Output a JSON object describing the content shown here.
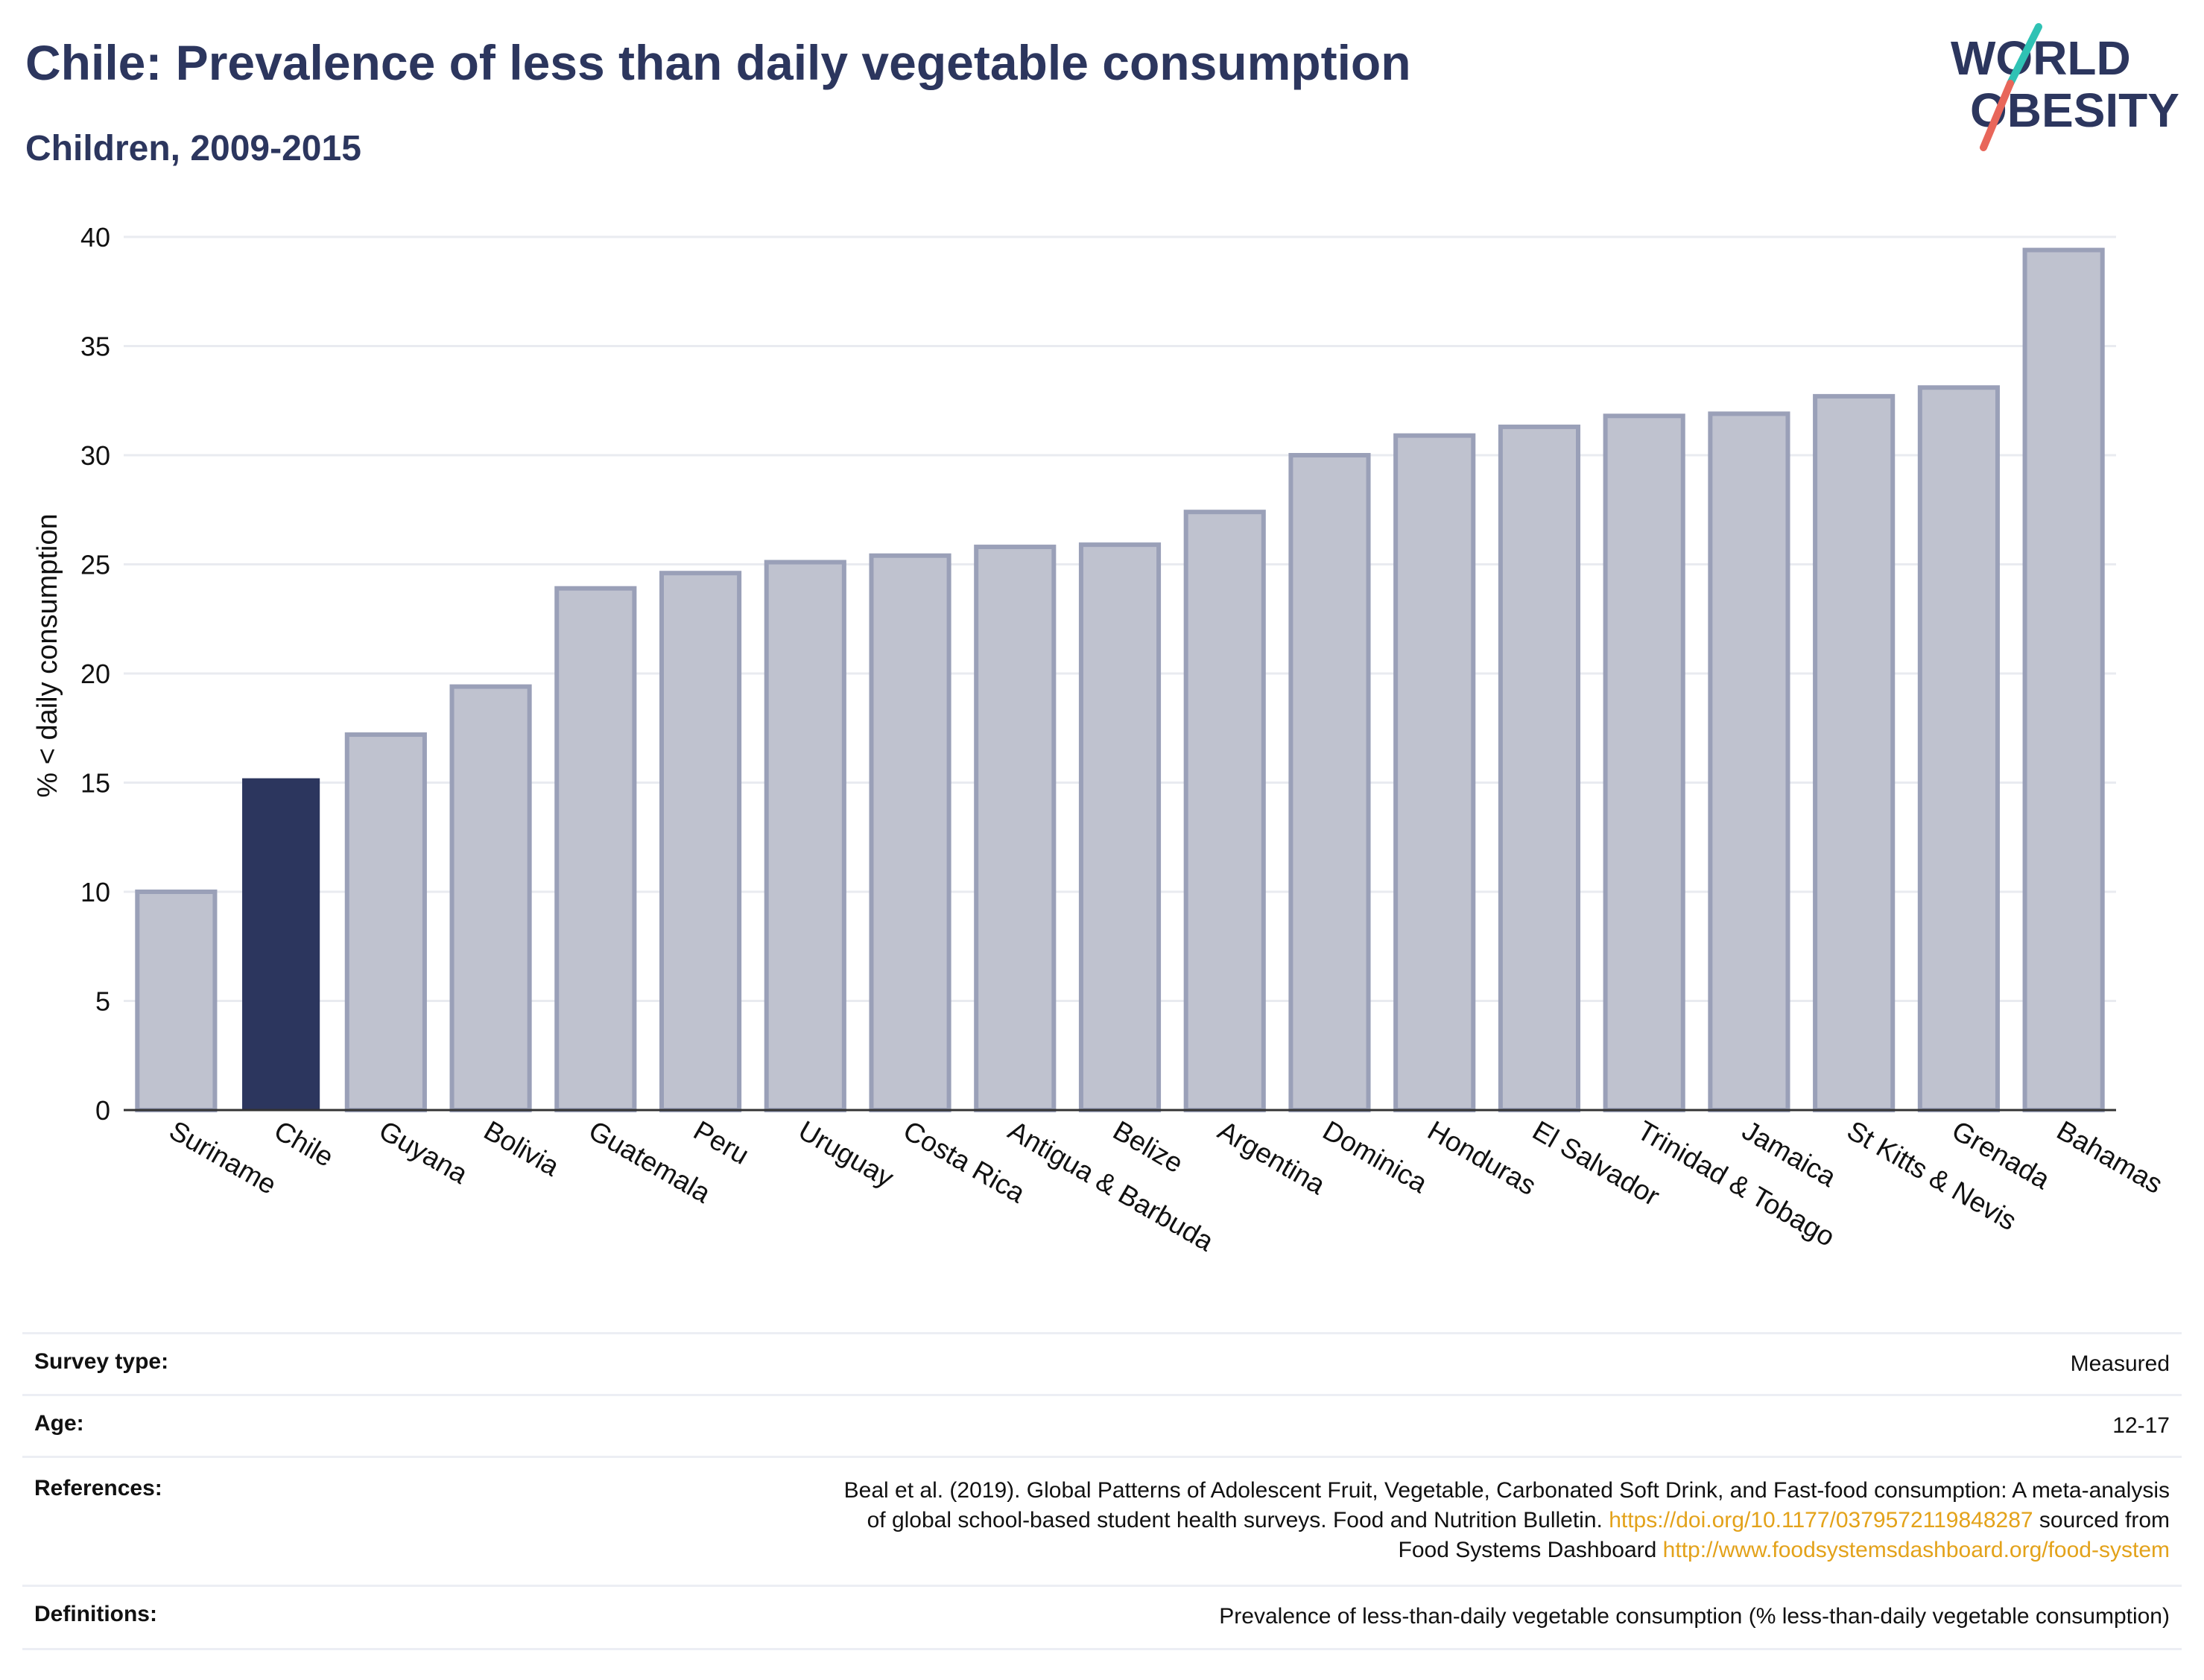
{
  "header": {
    "title": "Chile: Prevalence of less than daily vegetable consumption",
    "subtitle": "Children, 2009-2015"
  },
  "logo": {
    "line1": "WORLD",
    "line2": "OBESITY",
    "slash_colors": [
      "#2fc2b4",
      "#e8665a"
    ]
  },
  "colors": {
    "highlight_bar": "#2c365e",
    "other_bar": "#bfc2cf",
    "other_bar_border": "#9aa0b8",
    "text": "#2c365e",
    "link": "#e3a21a"
  },
  "chart_data": {
    "type": "bar",
    "ylabel": "% < daily consumption",
    "xlabel": "",
    "ylim": [
      0,
      40
    ],
    "yticks": [
      0,
      5,
      10,
      15,
      20,
      25,
      30,
      35,
      40
    ],
    "grid": true,
    "highlight": "Chile",
    "categories": [
      "Suriname",
      "Chile",
      "Guyana",
      "Bolivia",
      "Guatemala",
      "Peru",
      "Uruguay",
      "Costa Rica",
      "Antigua & Barbuda",
      "Belize",
      "Argentina",
      "Dominica",
      "Honduras",
      "El Salvador",
      "Trinidad & Tobago",
      "Jamaica",
      "St Kitts & Nevis",
      "Grenada",
      "Bahamas"
    ],
    "values": [
      10.0,
      15.2,
      17.2,
      19.4,
      23.9,
      24.6,
      25.1,
      25.4,
      25.8,
      25.9,
      27.4,
      30.0,
      30.9,
      31.3,
      31.8,
      31.9,
      32.7,
      33.1,
      39.4
    ]
  },
  "info": [
    {
      "label": "Survey type:",
      "lines": [
        {
          "text": "Measured"
        }
      ]
    },
    {
      "label": "Age:",
      "lines": [
        {
          "text": "12-17"
        }
      ]
    },
    {
      "label": "References:",
      "lines": [
        {
          "text": "Beal et al. (2019). Global Patterns of Adolescent Fruit, Vegetable, Carbonated Soft Drink, and Fast-food consumption: A meta-analysis"
        },
        {
          "text": "of global school-based student health surveys. Food and Nutrition Bulletin. ",
          "link": "https://doi.org/10.1177/0379572119848287",
          "after": " sourced from"
        },
        {
          "text": "Food Systems Dashboard ",
          "link": "http://www.foodsystemsdashboard.org/food-system"
        }
      ]
    },
    {
      "label": "Definitions:",
      "lines": [
        {
          "text": "Prevalence of less-than-daily vegetable consumption (% less-than-daily vegetable consumption)"
        }
      ]
    }
  ]
}
